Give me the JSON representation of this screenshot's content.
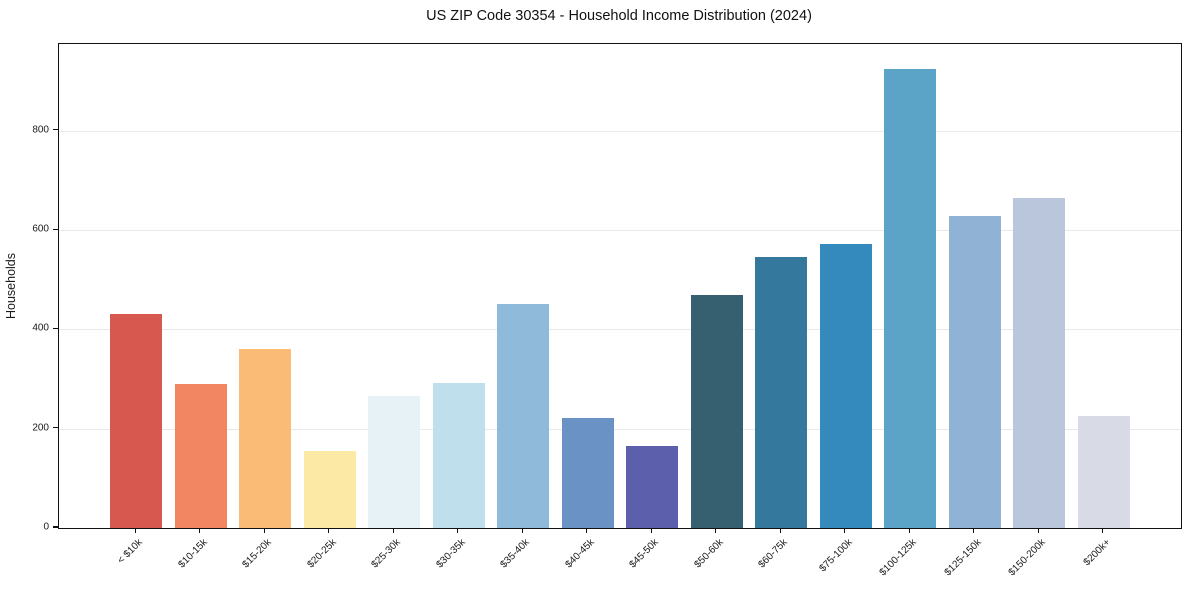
{
  "chart_data": {
    "type": "bar",
    "title": "US ZIP Code 30354 - Household Income Distribution (2024)",
    "xlabel": "",
    "ylabel": "Households",
    "categories": [
      "< $10k",
      "$10-15k",
      "$15-20k",
      "$20-25k",
      "$25-30k",
      "$30-35k",
      "$35-40k",
      "$40-45k",
      "$45-50k",
      "$50-60k",
      "$60-75k",
      "$75-100k",
      "$100-125k",
      "$125-150k",
      "$150-200k",
      "$200k+"
    ],
    "values": [
      432,
      290,
      361,
      155,
      266,
      292,
      451,
      222,
      166,
      470,
      546,
      573,
      924,
      628,
      665,
      226
    ],
    "bar_colors": [
      "#d6584e",
      "#f28562",
      "#fabb76",
      "#fde9a6",
      "#e7f2f6",
      "#bfdfec",
      "#90bada",
      "#6b92c4",
      "#5c5fac",
      "#365f70",
      "#35789e",
      "#348abd",
      "#5ba4c7",
      "#90b3d5",
      "#b9c6dc",
      "#d8dae6"
    ],
    "ylim": [
      0,
      975
    ],
    "yticks": [
      0,
      200,
      400,
      600,
      800
    ],
    "grid": "horizontal",
    "grid_color": "#e9e9e9",
    "frame_color": "#111111",
    "text_color": "#1a1a1a",
    "legend": "none",
    "x_tick_label_rotation": 45
  }
}
